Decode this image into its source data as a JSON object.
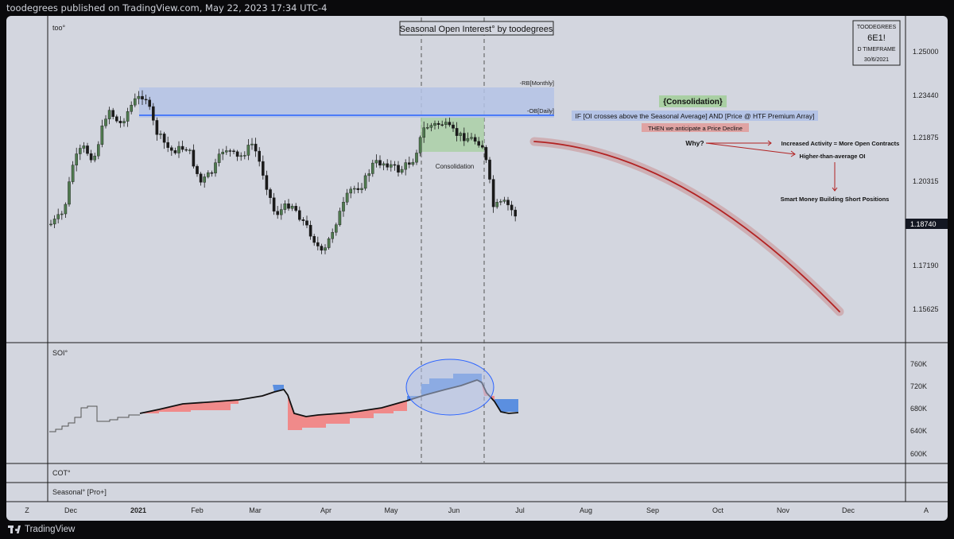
{
  "header": {
    "published_text": "toodegrees published on TradingView.com, May 22, 2023 17:34 UTC-4"
  },
  "footer": {
    "brand": "TradingView"
  },
  "chart": {
    "title_box": "Seasonal Open Interest° by toodegrees",
    "symbol_label": "too°",
    "info_box": {
      "author": "TOODEGREES",
      "symbol": "6E1!",
      "timeframe": "D TIMEFRAME",
      "date": "30/6/2021"
    },
    "price_axis": [
      "1.25000",
      "1.23440",
      "1.21875",
      "1.20315",
      "1.17190",
      "1.15625"
    ],
    "current_price": "1.18740",
    "levels": {
      "rb": "-RB[Monthly]",
      "ob": "-OB[Daily]"
    },
    "consolidation_label": "Consolidation",
    "annotations": {
      "heading": "{Consolidation}",
      "condition": "IF [OI crosses above the Seasonal Average] AND [Price @ HTF Premium Array]",
      "consequence": "THEN we anticipate a Price Decline",
      "why": "Why?",
      "reason1": "Increased Activity = More Open Contracts",
      "reason2": "Higher-than-average OI",
      "reason3": "Smart Money Building Short Positions"
    }
  },
  "panes": {
    "soi": {
      "label": "SOI°",
      "axis": [
        "760K",
        "720K",
        "680K",
        "640K",
        "600K"
      ]
    },
    "cot": {
      "label": "COT°"
    },
    "seasonal": {
      "label": "Seasonal° [Pro+]"
    }
  },
  "time_axis": {
    "labels": [
      "Dec",
      "2021",
      "Feb",
      "Mar",
      "Apr",
      "May",
      "Jun",
      "Jul",
      "Aug",
      "Sep",
      "Oct",
      "Nov",
      "Dec"
    ],
    "left_button": "Z",
    "right_button": "A"
  },
  "colors": {
    "bull": "#4f7a4f",
    "bear": "#1a1a1a",
    "premium_zone": "#b4c3e6",
    "consolidation_zone": "#a9cfa3",
    "ob_line": "#2962ff",
    "projection": "#b22222",
    "soi_above": "#5b8fe0",
    "soi_below": "#f08a8a"
  }
}
